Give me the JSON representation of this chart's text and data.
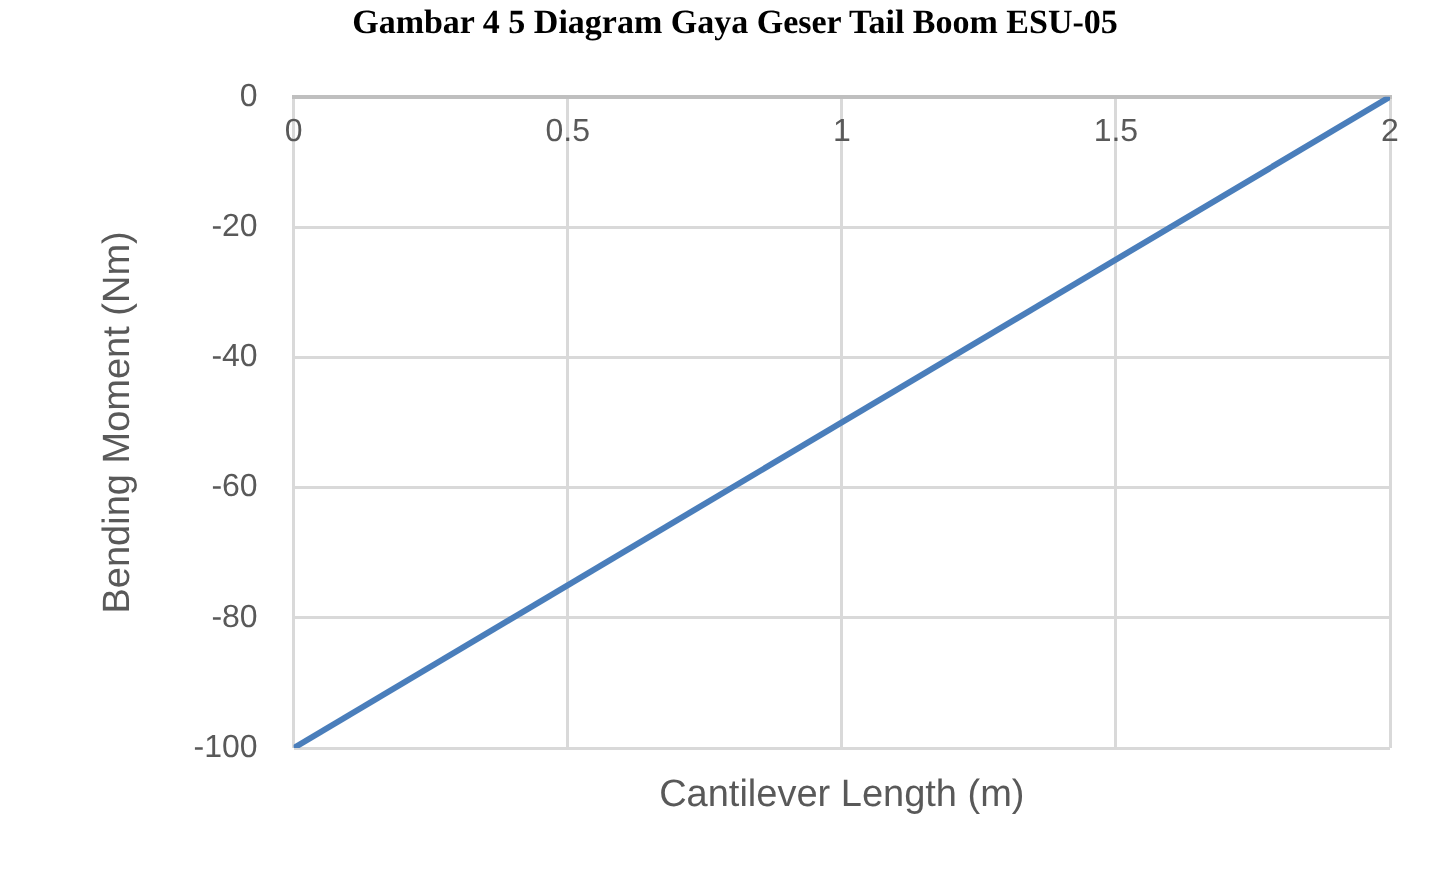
{
  "chart_data": {
    "type": "line",
    "title": "Gambar 4 5 Diagram Gaya Geser Tail Boom ESU-05",
    "xlabel": "Cantilever Length (m)",
    "ylabel": "Bending Moment (Nm)",
    "x": [
      0,
      2
    ],
    "series": [
      {
        "color": "#4a7ebb",
        "values": [
          -100,
          0
        ]
      }
    ],
    "xlim": [
      0,
      2
    ],
    "xticks": [
      0,
      0.5,
      1,
      1.5,
      2
    ],
    "ylim": [
      -100,
      0
    ],
    "yticks": [
      0,
      -20,
      -40,
      -60,
      -80,
      -100
    ],
    "grid": true,
    "legend": false,
    "marker": "none",
    "line_style": "solid"
  }
}
